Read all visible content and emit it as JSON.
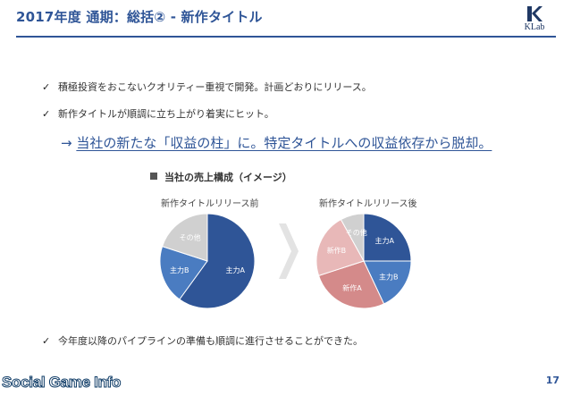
{
  "slide": {
    "title": "2017年度 通期：総括② - 新作タイトル",
    "logo_text": "KLab",
    "page_number": "17"
  },
  "bullets": [
    {
      "check": "✓",
      "text": "積極投資をおこないクオリティー重視で開発。計画どおりにリリース。"
    },
    {
      "check": "✓",
      "text": "新作タイトルが順調に立ち上がり着実にヒット。"
    },
    {
      "check": "✓",
      "text": "今年度以降のパイプラインの準備も順調に進行させることができた。"
    }
  ],
  "conclusion": {
    "arrow": "→",
    "text": "当社の新たな「収益の柱」に。特定タイトルへの収益依存から脱却。"
  },
  "section_heading": "当社の売上構成（イメージ）",
  "watermark": "Social Game Info",
  "chart_data": [
    {
      "type": "pie",
      "title": "新作タイトルリリース前",
      "labels": [
        "主力A",
        "主力B",
        "その他"
      ],
      "values": [
        60,
        20,
        20
      ],
      "colors": [
        "#2f5597",
        "#4a7cc1",
        "#d0d0d0"
      ]
    },
    {
      "type": "pie",
      "title": "新作タイトルリリース後",
      "labels": [
        "主力A",
        "主力B",
        "新作A",
        "新作B",
        "その他"
      ],
      "values": [
        25,
        18,
        27,
        22,
        8
      ],
      "colors": [
        "#2f5597",
        "#4a7cc1",
        "#d48a8a",
        "#e8b8b8",
        "#d0d0d0"
      ]
    }
  ]
}
